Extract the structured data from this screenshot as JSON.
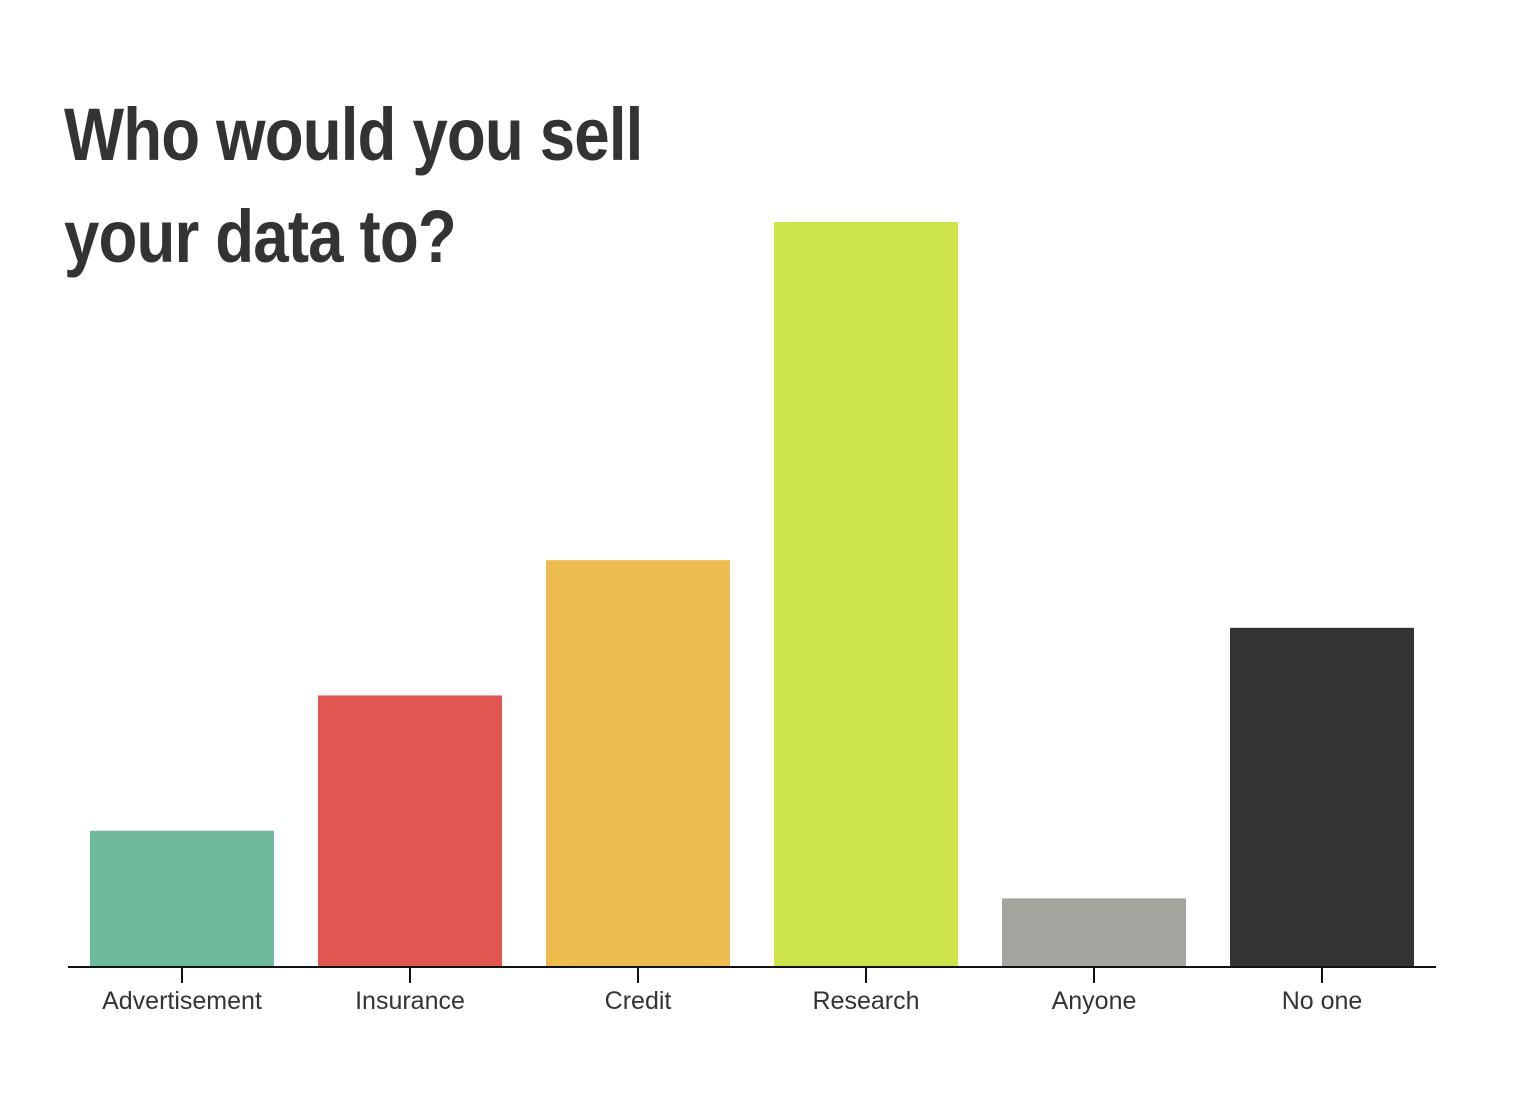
{
  "chart_data": {
    "type": "bar",
    "title": "Who would you sell your data to?",
    "xlabel": "",
    "ylabel": "",
    "categories": [
      "Advertisement",
      "Insurance",
      "Credit",
      "Research",
      "Anyone",
      "No one"
    ],
    "values": [
      10,
      20,
      30,
      55,
      5,
      25
    ],
    "ylim": [
      0,
      55
    ],
    "colors": [
      "#6fb89c",
      "#e05650",
      "#ecbb4e",
      "#cde44a",
      "#a5a5a0",
      "#333333"
    ],
    "axis_color": "#111111",
    "grid": false,
    "legend": "none"
  }
}
